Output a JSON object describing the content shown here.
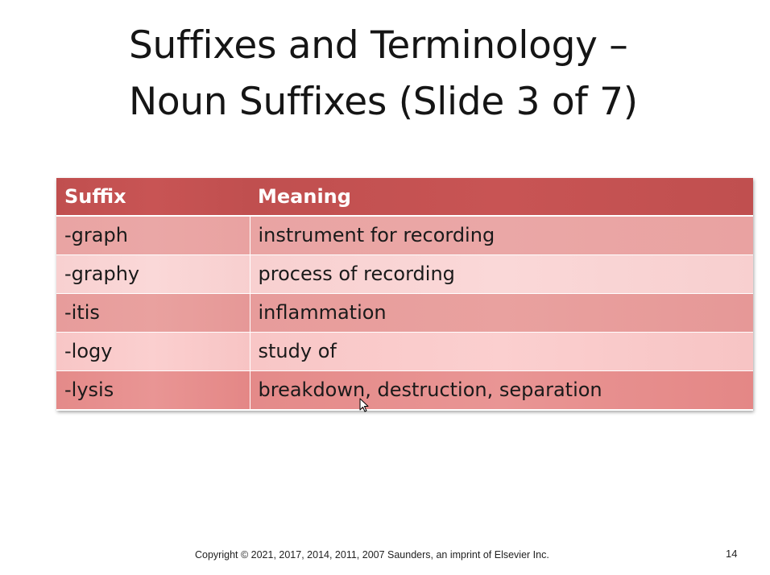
{
  "slide": {
    "title_line1": "Suffixes and Terminology –",
    "title_line2": "Noun Suffixes (Slide 3 of 7)"
  },
  "table": {
    "headers": [
      "Suffix",
      "Meaning"
    ],
    "rows": [
      {
        "suffix": "-graph",
        "meaning": "instrument for recording"
      },
      {
        "suffix": "-graphy",
        "meaning": "process of recording"
      },
      {
        "suffix": "-itis",
        "meaning": "inflammation"
      },
      {
        "suffix": "-logy",
        "meaning": "study of"
      },
      {
        "suffix": "-lysis",
        "meaning": "breakdown, destruction, separation"
      }
    ]
  },
  "footer": {
    "copyright": "Copyright ©  2021, 2017, 2014, 2011, 2007 Saunders, an imprint of Elsevier Inc.",
    "page_number": "14"
  },
  "colors": {
    "header_bg": "#c04f4f",
    "row_dark": "#e9a4a3",
    "row_light": "#f8d0d0"
  },
  "icons": {
    "cursor": "mouse-pointer-icon"
  }
}
